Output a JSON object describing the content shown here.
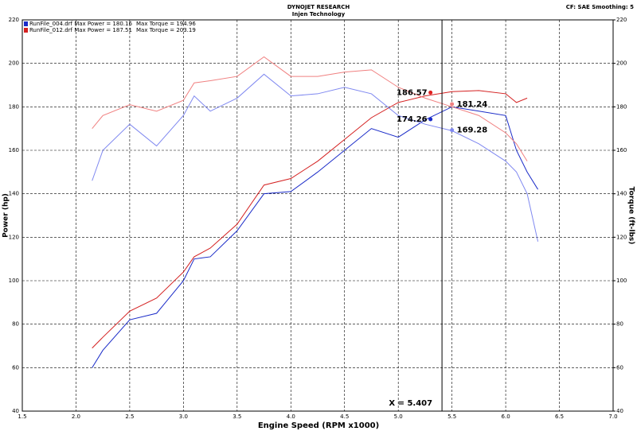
{
  "chart_data": {
    "type": "line",
    "title": "DYNOJET RESEARCH",
    "subtitle": "Injen Technology",
    "settings_text": "CF: SAE  Smoothing: 5",
    "x_label": "Engine Speed (RPM x1000)",
    "y_label": "Power (hp)",
    "y2_label": "Torque (ft-lbs)",
    "legend": [
      {
        "text": "RunFile_004.drf Max Power = 180.16",
        "torque": "Max Torque = 194.96",
        "color": "#1a2bc8"
      },
      {
        "text": "RunFile_012.drf Max Power = 187.51",
        "torque": "Max Torque = 203.19",
        "color": "#d42020"
      }
    ],
    "x": [
      2.15,
      2.25,
      2.5,
      2.75,
      3.0,
      3.1,
      3.25,
      3.5,
      3.75,
      4.0,
      4.25,
      4.5,
      4.75,
      5.0,
      5.25,
      5.5,
      5.75,
      6.0,
      6.1,
      6.2,
      6.3
    ],
    "series": [
      {
        "color": "#d42020",
        "values": [
          69,
          74,
          86,
          92,
          104,
          111,
          115,
          126,
          144,
          147,
          155,
          165,
          175,
          182,
          185,
          187,
          187.5,
          186,
          182,
          184,
          null
        ]
      },
      {
        "color": "#1a2bc8",
        "values": [
          60,
          68,
          82,
          85,
          100,
          110,
          111,
          123,
          140,
          141,
          150,
          160,
          170,
          166,
          174,
          180,
          178,
          176,
          160,
          150,
          142
        ]
      },
      {
        "color": "#f08080",
        "axis": "y2",
        "values": [
          170,
          176,
          181,
          178,
          183,
          191,
          192,
          194,
          203,
          194,
          194,
          196,
          197,
          189,
          184,
          180,
          176,
          168,
          163,
          155,
          null
        ]
      },
      {
        "color": "#7f88f0",
        "axis": "y2",
        "values": [
          146,
          160,
          172,
          162,
          176,
          185,
          178,
          184,
          195,
          185,
          186,
          189,
          186,
          176,
          172,
          169,
          163,
          155,
          150,
          140,
          118
        ]
      }
    ],
    "cursor": {
      "x": 5.407,
      "label": "X = 5.407",
      "readouts": [
        {
          "value": 186.57,
          "color": "#e02020",
          "axis": "y"
        },
        {
          "value": 181.24,
          "color": "#f08080",
          "axis": "y2"
        },
        {
          "value": 174.26,
          "color": "#1a2bc8",
          "axis": "y"
        },
        {
          "value": 169.28,
          "color": "#7f88f0",
          "axis": "y2"
        }
      ]
    },
    "xlim": [
      1.5,
      7.0
    ],
    "xticks": [
      {
        "value": 1.5,
        "label": "1.5"
      },
      {
        "value": 2,
        "label": "2.0"
      },
      {
        "value": 2.5,
        "label": "2.5"
      },
      {
        "value": 3,
        "label": "3.0"
      },
      {
        "value": 3.5,
        "label": "3.5"
      },
      {
        "value": 4,
        "label": "4.0"
      },
      {
        "value": 4.5,
        "label": "4.5"
      },
      {
        "value": 5,
        "label": "5.0"
      },
      {
        "value": 5.5,
        "label": "5.5"
      },
      {
        "value": 6,
        "label": "6.0"
      },
      {
        "value": 6.5,
        "label": "6.5"
      },
      {
        "value": 7,
        "label": "7.0"
      }
    ],
    "ylim": [
      40,
      220
    ],
    "yticks": [
      40,
      60,
      80,
      100,
      120,
      140,
      160,
      180,
      200,
      220
    ],
    "y2lim": [
      40,
      220
    ],
    "y2ticks": [
      40,
      60,
      80,
      100,
      120,
      140,
      160,
      180,
      200,
      220
    ],
    "grid": true
  }
}
